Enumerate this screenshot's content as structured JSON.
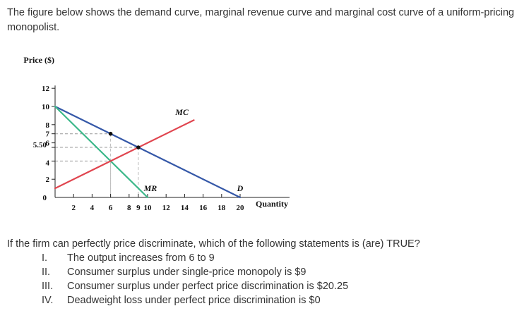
{
  "intro_text": "The figure below shows the demand curve, marginal revenue curve and marginal cost curve of a uniform-pricing monopolist.",
  "question": {
    "prompt": "If the firm can perfectly price discriminate, which of the following statements is (are) TRUE?",
    "statements": [
      {
        "numeral": "I.",
        "text": "The output increases from 6 to 9"
      },
      {
        "numeral": "II.",
        "text": "Consumer surplus under single-price monopoly is $9"
      },
      {
        "numeral": "III.",
        "text": "Consumer surplus under perfect price discrimination is $20.25"
      },
      {
        "numeral": "IV.",
        "text": "Deadweight loss under perfect price discrimination is $0"
      }
    ]
  },
  "chart_data": {
    "type": "line",
    "title": "",
    "xlabel": "Quantity",
    "ylabel": "Price ($)",
    "xlim": [
      0,
      20
    ],
    "ylim": [
      0,
      12
    ],
    "x_ticks": [
      "2",
      "4",
      "6",
      "8",
      "9",
      "10",
      "12",
      "14",
      "16",
      "18",
      "20"
    ],
    "x_tick_values": [
      2,
      4,
      6,
      8,
      9,
      10,
      12,
      14,
      16,
      18,
      20
    ],
    "y_ticks": [
      "12",
      "10",
      "8",
      "7",
      "6",
      "5.50",
      "4",
      "2",
      "0"
    ],
    "y_tick_values": [
      12,
      10,
      8,
      7,
      6,
      5.5,
      4,
      2,
      0
    ],
    "series": [
      {
        "name": "D",
        "x": [
          0,
          20
        ],
        "y": [
          10,
          0
        ],
        "color": "#3558a8"
      },
      {
        "name": "MR",
        "x": [
          0,
          10
        ],
        "y": [
          10,
          0
        ],
        "color": "#3cb88a"
      },
      {
        "name": "MC",
        "x": [
          0,
          15
        ],
        "y": [
          1,
          8.5
        ],
        "color": "#e0454f"
      }
    ],
    "points": [
      {
        "x": 6,
        "y": 7
      },
      {
        "x": 9,
        "y": 5.5
      }
    ],
    "guide_lines": [
      {
        "x": 6,
        "y": 7
      },
      {
        "x": 9,
        "y": 5.5
      },
      {
        "x": 6,
        "y": 4
      }
    ]
  }
}
